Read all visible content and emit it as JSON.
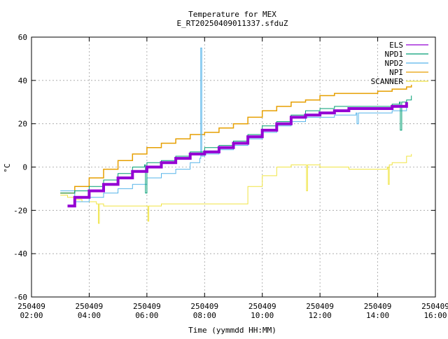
{
  "chart_data": {
    "type": "line",
    "title": "Temperature for MEX",
    "subtitle": "E_RT20250409011337.sfduZ",
    "xlabel": "Time (yymmdd HH:MM)",
    "ylabel": "°C",
    "xlim": [
      "2025-04-09 02:00",
      "2025-04-09 16:00"
    ],
    "ylim": [
      -60,
      60
    ],
    "grid": true,
    "legend_position": "top-right",
    "y_ticks": [
      {
        "value": -60,
        "label": "-60"
      },
      {
        "value": -40,
        "label": "-40"
      },
      {
        "value": -20,
        "label": "-20"
      },
      {
        "value": 0,
        "label": "0"
      },
      {
        "value": 20,
        "label": "20"
      },
      {
        "value": 40,
        "label": "40"
      },
      {
        "value": 60,
        "label": "60"
      }
    ],
    "x_ticks": [
      {
        "value": "2025-04-09 02:00",
        "date": "250409",
        "time": "02:00"
      },
      {
        "value": "2025-04-09 04:00",
        "date": "250409",
        "time": "04:00"
      },
      {
        "value": "2025-04-09 06:00",
        "date": "250409",
        "time": "06:00"
      },
      {
        "value": "2025-04-09 08:00",
        "date": "250409",
        "time": "08:00"
      },
      {
        "value": "2025-04-09 10:00",
        "date": "250409",
        "time": "10:00"
      },
      {
        "value": "2025-04-09 12:00",
        "date": "250409",
        "time": "12:00"
      },
      {
        "value": "2025-04-09 14:00",
        "date": "250409",
        "time": "14:00"
      },
      {
        "value": "2025-04-09 16:00",
        "date": "250409",
        "time": "16:00"
      }
    ],
    "series": [
      {
        "name": "ELS",
        "color": "#9400d3",
        "stroke": 4,
        "x": [
          "2025-04-09 03:15",
          "2025-04-09 03:30",
          "2025-04-09 04:00",
          "2025-04-09 04:30",
          "2025-04-09 05:00",
          "2025-04-09 05:30",
          "2025-04-09 06:00",
          "2025-04-09 06:30",
          "2025-04-09 07:00",
          "2025-04-09 07:30",
          "2025-04-09 08:00",
          "2025-04-09 08:30",
          "2025-04-09 09:00",
          "2025-04-09 09:30",
          "2025-04-09 10:00",
          "2025-04-09 10:30",
          "2025-04-09 11:00",
          "2025-04-09 11:30",
          "2025-04-09 12:00",
          "2025-04-09 12:30",
          "2025-04-09 13:00",
          "2025-04-09 13:30",
          "2025-04-09 14:00",
          "2025-04-09 14:30",
          "2025-04-09 15:00"
        ],
        "values": [
          -18,
          -14,
          -11,
          -8,
          -5,
          -2,
          0,
          2,
          4,
          6,
          7,
          9,
          11,
          14,
          17,
          20,
          23,
          24,
          25,
          26,
          27,
          27,
          27,
          28,
          30
        ]
      },
      {
        "name": "NPD1",
        "color": "#009e73",
        "stroke": 1,
        "x": [
          "2025-04-09 03:00",
          "2025-04-09 03:30",
          "2025-04-09 04:00",
          "2025-04-09 04:30",
          "2025-04-09 05:00",
          "2025-04-09 05:30",
          "2025-04-09 05:55",
          "2025-04-09 05:57",
          "2025-04-09 06:00",
          "2025-04-09 06:30",
          "2025-04-09 07:00",
          "2025-04-09 07:30",
          "2025-04-09 08:00",
          "2025-04-09 08:30",
          "2025-04-09 09:00",
          "2025-04-09 09:30",
          "2025-04-09 10:00",
          "2025-04-09 10:30",
          "2025-04-09 11:00",
          "2025-04-09 11:30",
          "2025-04-09 12:00",
          "2025-04-09 12:30",
          "2025-04-09 13:00",
          "2025-04-09 13:30",
          "2025-04-09 14:00",
          "2025-04-09 14:30",
          "2025-04-09 14:45",
          "2025-04-09 14:47",
          "2025-04-09 14:50",
          "2025-04-09 15:00",
          "2025-04-09 15:10"
        ],
        "values": [
          -12,
          -11,
          -9,
          -6,
          -3,
          0,
          1,
          -12,
          2,
          3,
          5,
          7,
          9,
          10,
          12,
          15,
          19,
          21,
          24,
          26,
          27,
          28,
          28,
          28,
          28,
          29,
          30,
          17,
          30,
          31,
          33
        ]
      },
      {
        "name": "NPD2",
        "color": "#56b4e9",
        "stroke": 1,
        "x": [
          "2025-04-09 03:00",
          "2025-04-09 03:30",
          "2025-04-09 04:00",
          "2025-04-09 04:30",
          "2025-04-09 05:00",
          "2025-04-09 05:30",
          "2025-04-09 06:00",
          "2025-04-09 06:30",
          "2025-04-09 07:00",
          "2025-04-09 07:30",
          "2025-04-09 07:50",
          "2025-04-09 07:52",
          "2025-04-09 07:54",
          "2025-04-09 08:00",
          "2025-04-09 08:30",
          "2025-04-09 09:00",
          "2025-04-09 09:30",
          "2025-04-09 10:00",
          "2025-04-09 10:30",
          "2025-04-09 11:00",
          "2025-04-09 11:30",
          "2025-04-09 12:00",
          "2025-04-09 12:30",
          "2025-04-09 13:00",
          "2025-04-09 13:15",
          "2025-04-09 13:17",
          "2025-04-09 13:20",
          "2025-04-09 14:00",
          "2025-04-09 14:30",
          "2025-04-09 15:00"
        ],
        "values": [
          -11,
          -16,
          -14,
          -12,
          -10,
          -8,
          -5,
          -3,
          -1,
          2,
          4,
          55,
          5,
          6,
          8,
          10,
          13,
          16,
          19,
          21,
          23,
          23,
          24,
          24,
          25,
          20,
          25,
          25,
          26,
          28
        ]
      },
      {
        "name": "NPI",
        "color": "#e69f00",
        "stroke": 1.5,
        "x": [
          "2025-04-09 03:00",
          "2025-04-09 03:30",
          "2025-04-09 04:00",
          "2025-04-09 04:30",
          "2025-04-09 05:00",
          "2025-04-09 05:30",
          "2025-04-09 06:00",
          "2025-04-09 06:30",
          "2025-04-09 07:00",
          "2025-04-09 07:30",
          "2025-04-09 08:00",
          "2025-04-09 08:30",
          "2025-04-09 09:00",
          "2025-04-09 09:30",
          "2025-04-09 10:00",
          "2025-04-09 10:30",
          "2025-04-09 11:00",
          "2025-04-09 11:30",
          "2025-04-09 12:00",
          "2025-04-09 12:30",
          "2025-04-09 13:00",
          "2025-04-09 13:30",
          "2025-04-09 14:00",
          "2025-04-09 14:30",
          "2025-04-09 15:00",
          "2025-04-09 15:10"
        ],
        "values": [
          -12,
          -9,
          -5,
          -1,
          3,
          6,
          9,
          11,
          13,
          15,
          16,
          18,
          20,
          23,
          26,
          28,
          30,
          31,
          33,
          34,
          34,
          34,
          35,
          36,
          37,
          38
        ]
      },
      {
        "name": "SCANNER",
        "color": "#f0e442",
        "stroke": 1,
        "x": [
          "2025-04-09 03:00",
          "2025-04-09 03:15",
          "2025-04-09 03:30",
          "2025-04-09 03:45",
          "2025-04-09 04:00",
          "2025-04-09 04:15",
          "2025-04-09 04:19",
          "2025-04-09 04:21",
          "2025-04-09 04:30",
          "2025-04-09 05:00",
          "2025-04-09 06:00",
          "2025-04-09 06:02",
          "2025-04-09 06:04",
          "2025-04-09 06:30",
          "2025-04-09 07:00",
          "2025-04-09 07:30",
          "2025-04-09 08:00",
          "2025-04-09 08:30",
          "2025-04-09 09:00",
          "2025-04-09 09:30",
          "2025-04-09 10:00",
          "2025-04-09 10:30",
          "2025-04-09 11:00",
          "2025-04-09 11:30",
          "2025-04-09 11:32",
          "2025-04-09 11:34",
          "2025-04-09 12:00",
          "2025-04-09 12:30",
          "2025-04-09 13:00",
          "2025-04-09 13:30",
          "2025-04-09 14:00",
          "2025-04-09 14:20",
          "2025-04-09 14:22",
          "2025-04-09 14:24",
          "2025-04-09 14:30",
          "2025-04-09 15:00",
          "2025-04-09 15:10"
        ],
        "values": [
          -13,
          -14,
          -15,
          -16,
          -16,
          -17,
          -26,
          -17,
          -18,
          -18,
          -18,
          -25,
          -18,
          -17,
          -17,
          -17,
          -17,
          -17,
          -17,
          -9,
          -4,
          0,
          1,
          1,
          -11,
          1,
          0,
          0,
          -1,
          -1,
          -1,
          0,
          -8,
          1,
          2,
          5,
          6
        ]
      }
    ]
  }
}
